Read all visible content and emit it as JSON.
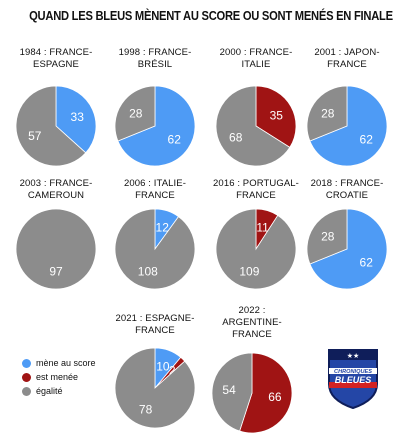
{
  "colors": {
    "lead": "#4e9bf5",
    "trail": "#a01414",
    "draw": "#8c8c8c",
    "label": "#ffffff"
  },
  "header": {
    "title": "QUAND LES BLEUS MÈNENT AU SCORE OU SONT MENÉS EN FINALE"
  },
  "legend": [
    {
      "label": "mène au score",
      "color": "#4e9bf5"
    },
    {
      "label": "est menée",
      "color": "#a01414"
    },
    {
      "label": "égalité",
      "color": "#8c8c8c"
    }
  ],
  "logo": {
    "text_top": "CHRONIQUES",
    "text_bottom": "BLEUES",
    "stars": "★★"
  },
  "chart_data": [
    {
      "type": "pie",
      "title_lines": [
        "1984 : FRANCE-",
        "ESPAGNE"
      ],
      "values": {
        "lead": 33,
        "trail": 0,
        "draw": 57
      }
    },
    {
      "type": "pie",
      "title_lines": [
        "1998 : FRANCE-",
        "BRÉSIL"
      ],
      "values": {
        "lead": 62,
        "trail": 0,
        "draw": 28
      }
    },
    {
      "type": "pie",
      "title_lines": [
        "2000 : FRANCE-",
        "ITALIE"
      ],
      "values": {
        "lead": 0,
        "trail": 35,
        "draw": 68
      }
    },
    {
      "type": "pie",
      "title_lines": [
        "2001 : JAPON-",
        "FRANCE"
      ],
      "values": {
        "lead": 62,
        "trail": 0,
        "draw": 28
      }
    },
    {
      "type": "pie",
      "title_lines": [
        "2003 : FRANCE-",
        "CAMEROUN"
      ],
      "values": {
        "lead": 0,
        "trail": 0,
        "draw": 97
      }
    },
    {
      "type": "pie",
      "title_lines": [
        "2006 : ITALIE-",
        "FRANCE"
      ],
      "values": {
        "lead": 12,
        "trail": 0,
        "draw": 108
      }
    },
    {
      "type": "pie",
      "title_lines": [
        "2016 : PORTUGAL-",
        "FRANCE"
      ],
      "values": {
        "lead": 0,
        "trail": 11,
        "draw": 109
      }
    },
    {
      "type": "pie",
      "title_lines": [
        "2018 : FRANCE-",
        "CROATIE"
      ],
      "values": {
        "lead": 62,
        "trail": 0,
        "draw": 28
      }
    },
    {
      "type": "pie",
      "title_lines": [
        "2021 : ESPAGNE-",
        "FRANCE"
      ],
      "values": {
        "lead": 10,
        "trail": 2,
        "draw": 78
      }
    },
    {
      "type": "pie",
      "title_lines": [
        "2022 :",
        "ARGENTINE-",
        "FRANCE"
      ],
      "values": {
        "lead": 0,
        "trail": 66,
        "draw": 54
      }
    }
  ]
}
